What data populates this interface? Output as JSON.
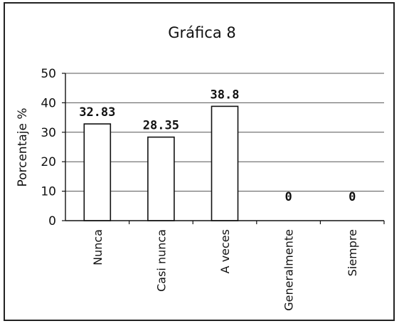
{
  "chart_data": {
    "type": "bar",
    "title": "Gráfica 8",
    "xlabel": "",
    "ylabel": "Porcentaje %",
    "categories": [
      "Nunca",
      "Casi nunca",
      "A veces",
      "Generalmente",
      "Siempre"
    ],
    "values": [
      32.83,
      28.35,
      38.8,
      0,
      0
    ],
    "data_labels": [
      "32.83",
      "28.35",
      "38.8",
      "0",
      "0"
    ],
    "ylim": [
      0,
      50
    ],
    "yticks": [
      0,
      10,
      20,
      30,
      40,
      50
    ],
    "grid": true,
    "legend": "none",
    "colors": {
      "bar_fill": "#ffffff",
      "bar_stroke": "#111111",
      "grid": "#555555",
      "frame": "#222222"
    }
  }
}
